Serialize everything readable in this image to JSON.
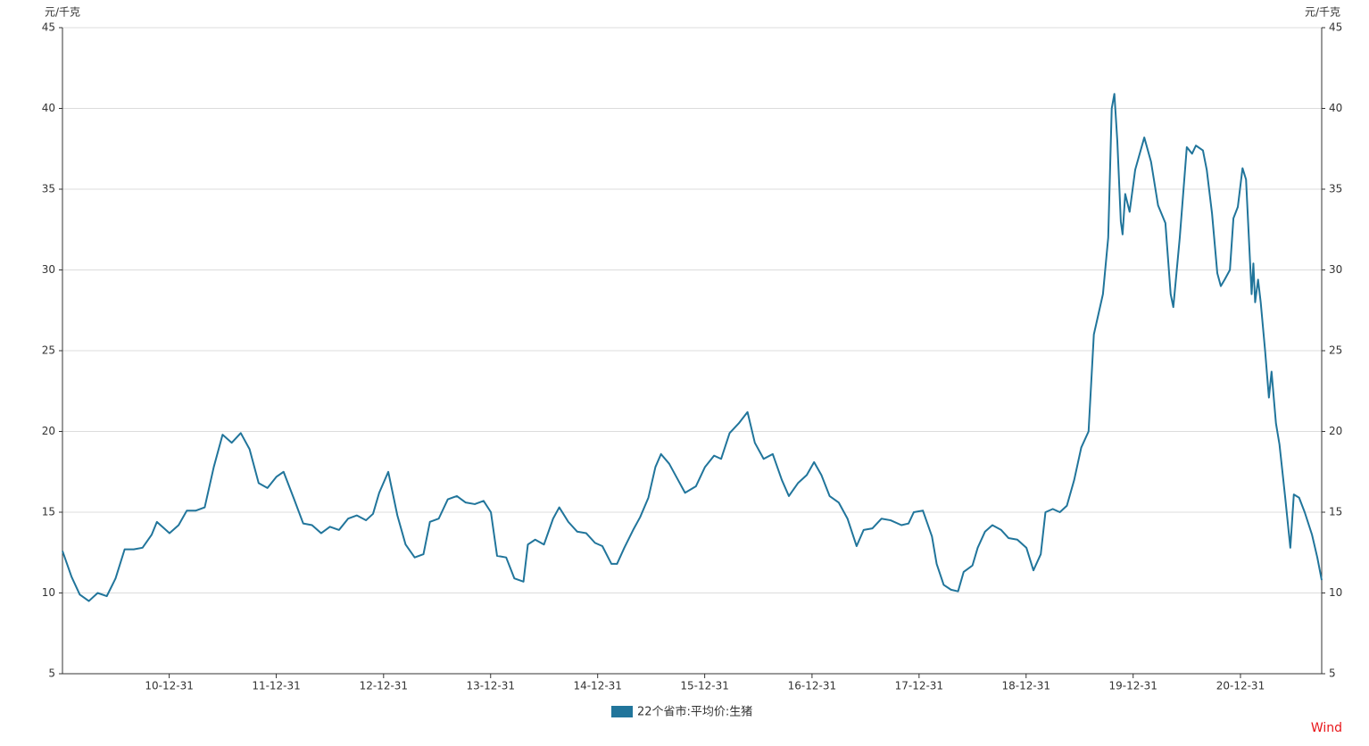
{
  "chart_data": {
    "type": "line",
    "y_label": "元/千克",
    "y2_label": "元/千克",
    "source": "Wind",
    "x": [
      "10-01-01",
      "10-02-01",
      "10-03-01",
      "10-04-01",
      "10-05-01",
      "10-06-01",
      "10-07-01",
      "10-08-01",
      "10-09-01",
      "10-10-01",
      "10-11-01",
      "10-11-19",
      "11-01-01",
      "11-02-01",
      "11-03-01",
      "11-04-01",
      "11-05-01",
      "11-06-01",
      "11-07-01",
      "11-08-01",
      "11-09-01",
      "11-10-01",
      "11-11-01",
      "11-12-01",
      "12-01-01",
      "12-01-25",
      "12-03-01",
      "12-04-01",
      "12-05-01",
      "12-06-01",
      "12-07-01",
      "12-08-01",
      "12-09-01",
      "12-10-01",
      "12-11-01",
      "12-11-25",
      "12-12-16",
      "13-01-16",
      "13-02-16",
      "13-03-16",
      "13-04-16",
      "13-05-16",
      "13-06-07",
      "13-07-07",
      "13-08-07",
      "13-09-07",
      "13-10-07",
      "13-11-07",
      "13-12-07",
      "14-01-01",
      "14-01-22",
      "14-02-22",
      "14-03-22",
      "14-04-22",
      "14-05-07",
      "14-06-01",
      "14-07-01",
      "14-08-01",
      "14-08-22",
      "14-09-22",
      "14-10-22",
      "14-11-22",
      "14-12-22",
      "15-01-16",
      "15-02-16",
      "15-03-07",
      "15-04-01",
      "15-05-01",
      "15-05-25",
      "15-06-22",
      "15-07-16",
      "15-08-04",
      "15-09-01",
      "15-09-25",
      "15-10-25",
      "15-12-01",
      "16-01-01",
      "16-02-01",
      "16-02-25",
      "16-03-25",
      "16-04-25",
      "16-05-25",
      "16-06-19",
      "16-07-19",
      "16-08-19",
      "16-09-19",
      "16-10-13",
      "16-11-13",
      "16-12-13",
      "17-01-07",
      "17-02-01",
      "17-03-01",
      "17-04-01",
      "17-05-01",
      "17-06-01",
      "17-06-25",
      "17-07-25",
      "17-08-25",
      "17-09-25",
      "17-11-01",
      "17-11-25",
      "17-12-13",
      "18-01-13",
      "18-02-13",
      "18-03-01",
      "18-03-25",
      "18-04-19",
      "18-05-13",
      "18-06-01",
      "18-07-01",
      "18-07-19",
      "18-08-13",
      "18-09-07",
      "18-10-07",
      "18-11-01",
      "18-12-01",
      "19-01-01",
      "19-01-25",
      "19-02-19",
      "19-03-07",
      "19-04-01",
      "19-04-25",
      "19-05-19",
      "19-06-13",
      "19-07-07",
      "19-08-01",
      "19-08-19",
      "19-09-19",
      "19-10-07",
      "19-10-19",
      "19-10-28",
      "19-11-07",
      "19-11-19",
      "19-11-25",
      "19-12-04",
      "19-12-19",
      "20-01-07",
      "20-02-07",
      "20-03-01",
      "20-03-25",
      "20-04-19",
      "20-05-07",
      "20-05-16",
      "20-06-07",
      "20-07-01",
      "20-07-19",
      "20-08-01",
      "20-08-25",
      "20-09-07",
      "20-09-25",
      "20-10-13",
      "20-10-25",
      "20-11-07",
      "20-11-25",
      "20-12-07",
      "20-12-22",
      "21-01-07",
      "21-01-19",
      "21-02-07",
      "21-02-13",
      "21-02-19",
      "21-03-01",
      "21-03-10",
      "21-03-25",
      "21-04-07",
      "21-04-16",
      "21-05-01",
      "21-05-13",
      "21-06-01",
      "21-06-19",
      "21-07-01",
      "21-07-19",
      "21-08-07",
      "21-09-01",
      "21-09-19",
      "21-10-04"
    ],
    "series": [
      {
        "name": "22个省市:平均价:生猪",
        "color": "#21759b",
        "values": [
          12.6,
          11.0,
          9.9,
          9.5,
          10.0,
          9.8,
          10.9,
          12.7,
          12.7,
          12.8,
          13.6,
          14.4,
          13.7,
          14.2,
          15.1,
          15.1,
          15.3,
          17.8,
          19.8,
          19.3,
          19.9,
          18.9,
          16.8,
          16.5,
          17.2,
          17.5,
          15.8,
          14.3,
          14.2,
          13.7,
          14.1,
          13.9,
          14.6,
          14.8,
          14.5,
          14.9,
          16.2,
          17.5,
          14.8,
          13.0,
          12.2,
          12.4,
          14.4,
          14.6,
          15.8,
          16.0,
          15.6,
          15.5,
          15.7,
          15.0,
          12.3,
          12.2,
          10.9,
          10.7,
          13.0,
          13.3,
          13.0,
          14.6,
          15.3,
          14.4,
          13.8,
          13.7,
          13.1,
          12.9,
          11.8,
          11.8,
          12.8,
          13.9,
          14.7,
          15.9,
          17.8,
          18.6,
          18.0,
          17.2,
          16.2,
          16.6,
          17.8,
          18.5,
          18.3,
          19.9,
          20.5,
          21.2,
          19.3,
          18.3,
          18.6,
          17.0,
          16.0,
          16.8,
          17.3,
          18.1,
          17.3,
          16.0,
          15.6,
          14.6,
          12.9,
          13.9,
          14.0,
          14.6,
          14.5,
          14.2,
          14.3,
          15.0,
          15.1,
          13.5,
          11.8,
          10.5,
          10.2,
          10.1,
          11.3,
          11.7,
          12.8,
          13.8,
          14.2,
          13.9,
          13.4,
          13.3,
          12.8,
          11.4,
          12.4,
          15.0,
          15.2,
          15.0,
          15.4,
          17.0,
          19.0,
          20.0,
          26.0,
          28.5,
          32.0,
          40.0,
          40.9,
          38.0,
          33.0,
          32.2,
          34.7,
          33.6,
          36.2,
          38.2,
          36.7,
          34.0,
          32.9,
          28.5,
          27.7,
          32.0,
          37.6,
          37.2,
          37.7,
          37.4,
          36.2,
          33.5,
          29.8,
          29.0,
          29.4,
          30.0,
          33.2,
          33.9,
          36.3,
          35.6,
          28.5,
          30.4,
          28.0,
          29.4,
          28.0,
          25.0,
          22.1,
          23.7,
          20.5,
          19.2,
          16.0,
          12.8,
          16.1,
          15.9,
          15.0,
          13.6,
          12.2,
          10.8
        ]
      }
    ],
    "xlim": [
      "10-01-01",
      "21-10-04"
    ],
    "xticks": [
      "10-12-31",
      "11-12-31",
      "12-12-31",
      "13-12-31",
      "14-12-31",
      "15-12-31",
      "16-12-31",
      "17-12-31",
      "18-12-31",
      "19-12-31",
      "20-12-31"
    ],
    "ylim": [
      5,
      45
    ],
    "yticks": [
      5,
      10,
      15,
      20,
      25,
      30,
      35,
      40,
      45
    ],
    "y2lim": [
      5,
      45
    ],
    "y2ticks": [
      5,
      10,
      15,
      20,
      25,
      30,
      35,
      40,
      45
    ],
    "grid": true,
    "legend": "bottom"
  }
}
